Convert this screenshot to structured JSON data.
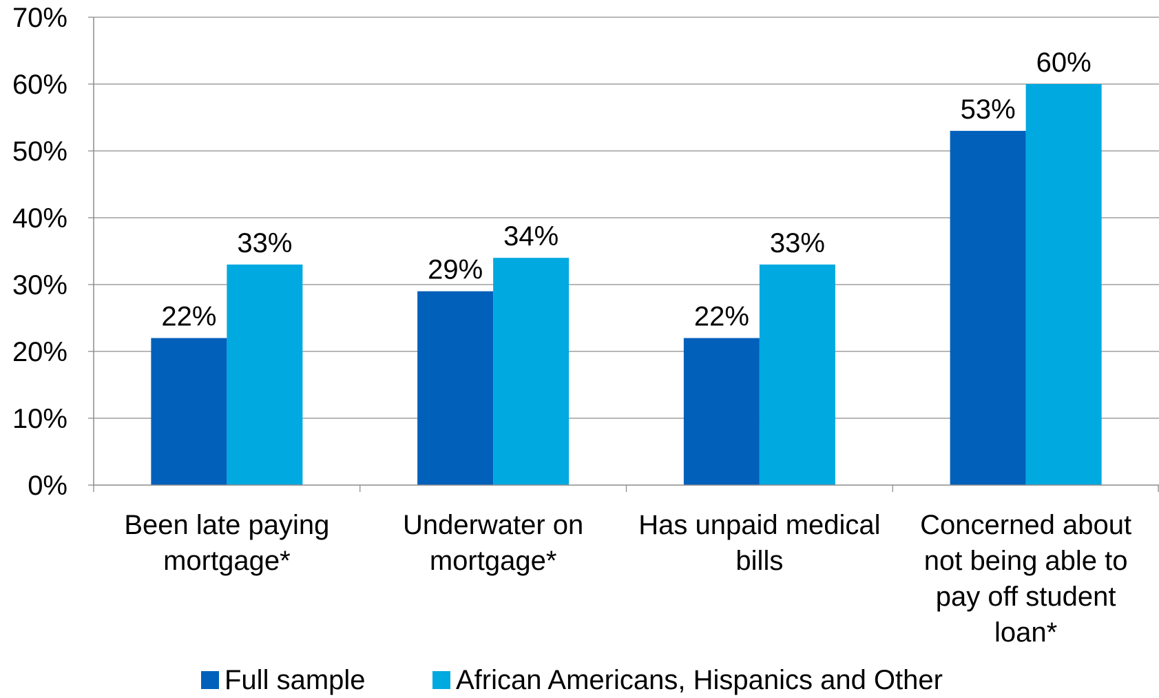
{
  "chart_data": {
    "type": "bar",
    "title": "",
    "xlabel": "",
    "ylabel": "",
    "ylim": [
      0,
      70
    ],
    "ytick_step": 10,
    "ytick_suffix": "%",
    "grid": true,
    "legend_position": "bottom",
    "categories": [
      [
        "Been late paying",
        "mortgage*"
      ],
      [
        "Underwater on",
        "mortgage*"
      ],
      [
        "Has unpaid medical",
        "bills"
      ],
      [
        "Concerned about",
        "not being able to",
        "pay off student",
        "loan*"
      ]
    ],
    "series": [
      {
        "name": "Full sample",
        "color": "#0060BA",
        "values": [
          22,
          29,
          22,
          53
        ],
        "labels": [
          "22%",
          "29%",
          "22%",
          "53%"
        ]
      },
      {
        "name": "African Americans, Hispanics and Other",
        "color": "#00A9E0",
        "values": [
          33,
          34,
          33,
          60
        ],
        "labels": [
          "33%",
          "34%",
          "33%",
          "60%"
        ]
      }
    ]
  }
}
